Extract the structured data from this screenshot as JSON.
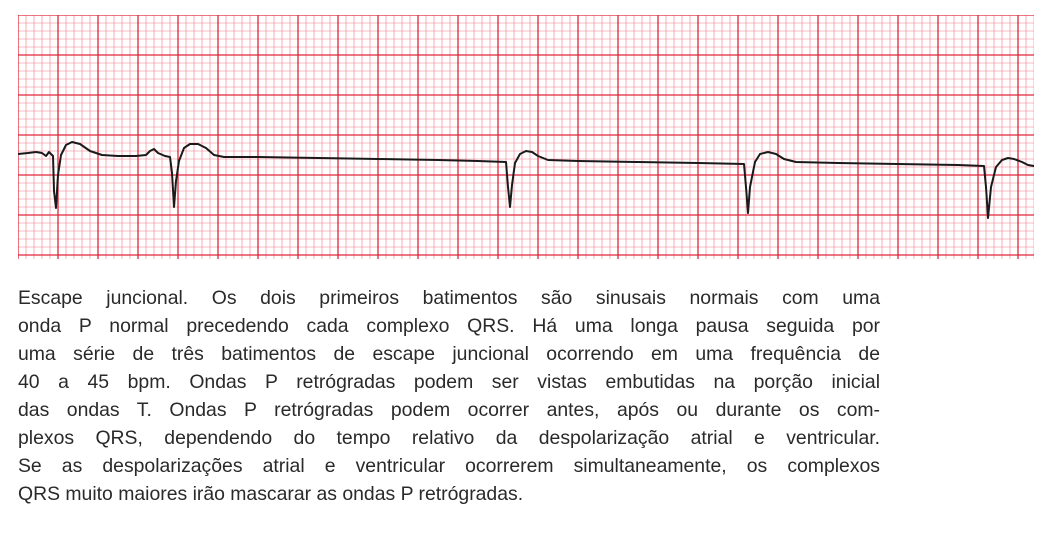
{
  "caption": {
    "lines": [
      "Escape juncional. Os dois primeiros batimentos são sinusais normais com uma",
      "onda P normal precedendo cada complexo QRS. Há uma longa pausa seguida por",
      "uma série de três batimentos de escape juncional ocorrendo em uma frequência de",
      "40 a 45 bpm. Ondas P retrógradas podem ser vistas embutidas na porção inicial",
      "das ondas T. Ondas P retrógradas podem ocorrer antes, após ou durante os com-",
      "plexos QRS, dependendo do tempo relativo da despolarização atrial e ventricular.",
      "Se as despolarizações atrial e ventricular ocorrerem simultaneamente, os complexos",
      "QRS muito maiores irão mascarar as ondas P retrógradas."
    ]
  },
  "colors": {
    "grid_minor": "#f07a87",
    "grid_major": "#e2253b",
    "trace": "#1a1a1a",
    "text": "#2a2a2a"
  }
}
